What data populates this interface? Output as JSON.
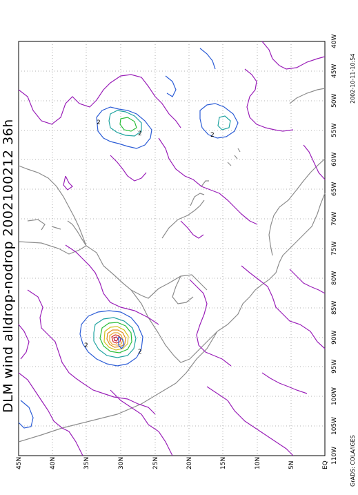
{
  "title": "DLM wind alldrop-nodrop 2002100212 36h",
  "timestamp": "2002-10-11-10:54",
  "credit": "GrADS: COLA/IGES",
  "lat_labels": [
    "45N",
    "40N",
    "35N",
    "30N",
    "25N",
    "20N",
    "15N",
    "10N",
    "5N",
    "EQ"
  ],
  "lon_labels": [
    "40W",
    "45W",
    "50W",
    "55W",
    "60W",
    "65W",
    "70W",
    "75W",
    "80W",
    "85W",
    "90W",
    "95W",
    "100W",
    "105W",
    "110W"
  ],
  "contour_labels": [
    "2",
    "2",
    "2",
    "2",
    "2"
  ],
  "colors": {
    "coast": "#8c8c8c",
    "grid": "#9a9a9a",
    "contour_purple": "#9a1fb8",
    "contour_blue": "#2b5cd6",
    "contour_teal": "#1fa3a0",
    "contour_green": "#2cbf3a",
    "contour_yellow": "#d2c21f",
    "contour_orange": "#e08a1c",
    "contour_red": "#d6281e"
  }
}
